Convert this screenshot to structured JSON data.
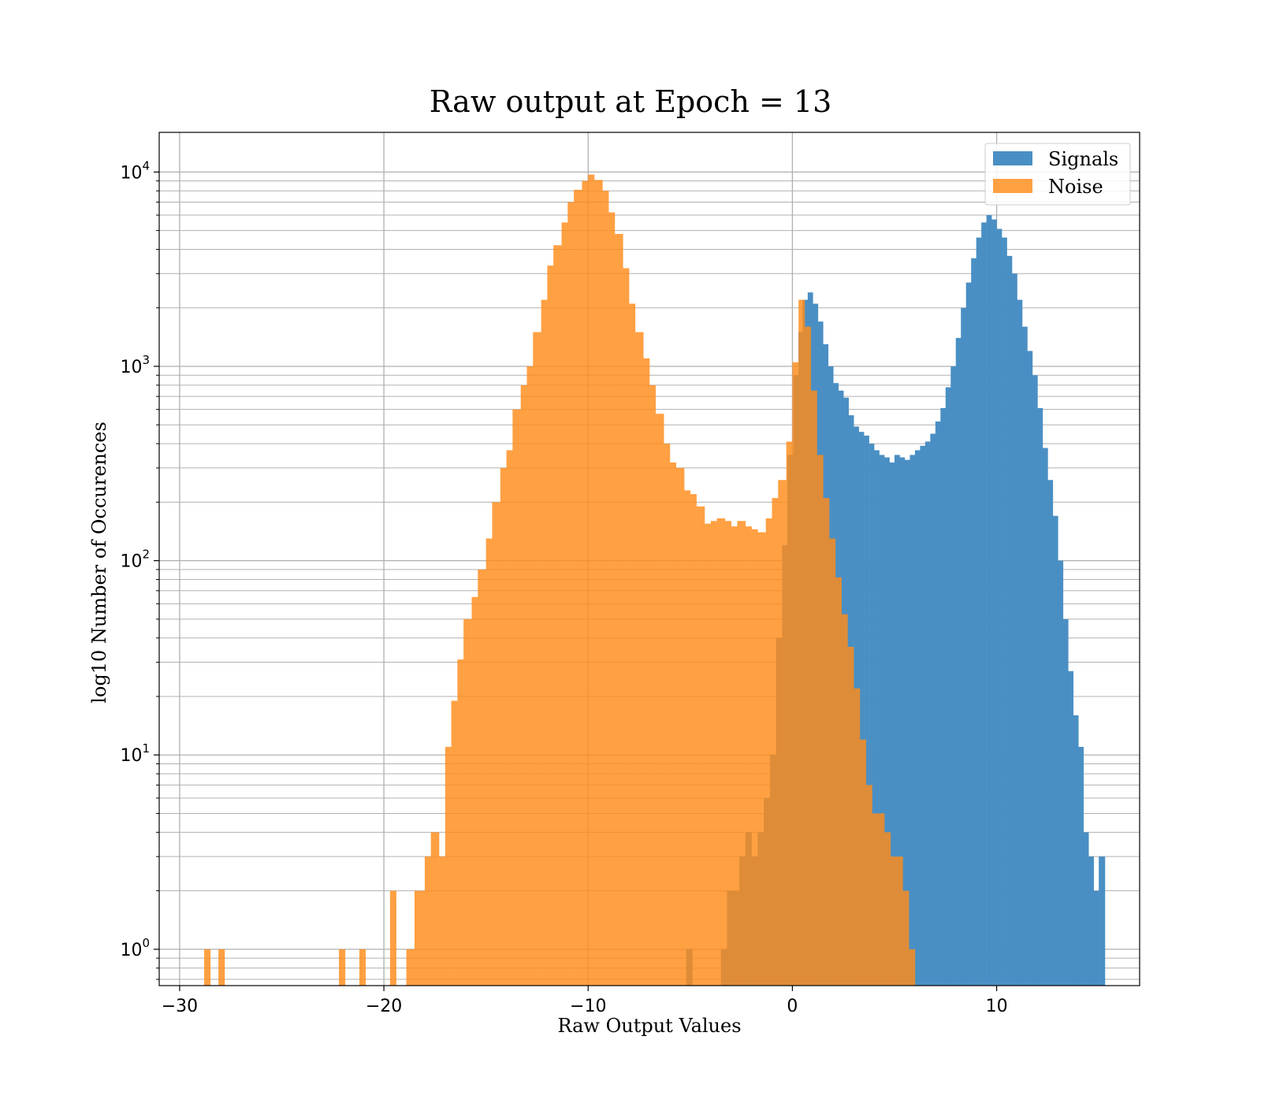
{
  "chart_data": {
    "type": "bar",
    "subtype": "histogram",
    "title": "Raw output at Epoch = 13",
    "xlabel": "Raw Output Values",
    "ylabel": "log10 Number of Occurences",
    "xlim": [
      -31,
      17
    ],
    "ylim": [
      0.65,
      16000
    ],
    "yscale": "log",
    "grid": true,
    "legend_position": "top-right",
    "x_ticks": [
      -30,
      -20,
      -10,
      0,
      10
    ],
    "y_ticks": [
      1,
      10,
      100,
      1000,
      10000
    ],
    "series": [
      {
        "name": "Signals",
        "color": "#4a8fc4",
        "opacity": 1,
        "bins": [
          [
            -5.2,
            1
          ],
          [
            -3.5,
            1
          ],
          [
            -3.2,
            2
          ],
          [
            -2.9,
            2
          ],
          [
            -2.6,
            3
          ],
          [
            -2.3,
            4
          ],
          [
            -2.0,
            3
          ],
          [
            -1.7,
            4
          ],
          [
            -1.4,
            6
          ],
          [
            -1.1,
            10
          ],
          [
            -0.8,
            40
          ],
          [
            -0.5,
            120
          ],
          [
            -0.25,
            350
          ],
          [
            0.05,
            900
          ],
          [
            0.3,
            1500
          ],
          [
            0.5,
            2200
          ],
          [
            0.75,
            2400
          ],
          [
            1.0,
            2100
          ],
          [
            1.25,
            1700
          ],
          [
            1.5,
            1300
          ],
          [
            1.75,
            1000
          ],
          [
            2.0,
            820
          ],
          [
            2.25,
            750
          ],
          [
            2.5,
            690
          ],
          [
            2.75,
            560
          ],
          [
            3.0,
            490
          ],
          [
            3.25,
            460
          ],
          [
            3.5,
            440
          ],
          [
            3.75,
            400
          ],
          [
            4.0,
            370
          ],
          [
            4.25,
            350
          ],
          [
            4.5,
            340
          ],
          [
            4.75,
            320
          ],
          [
            5.0,
            350
          ],
          [
            5.25,
            340
          ],
          [
            5.5,
            330
          ],
          [
            5.75,
            350
          ],
          [
            6.0,
            370
          ],
          [
            6.25,
            390
          ],
          [
            6.5,
            410
          ],
          [
            6.75,
            450
          ],
          [
            7.0,
            520
          ],
          [
            7.25,
            610
          ],
          [
            7.5,
            780
          ],
          [
            7.75,
            1000
          ],
          [
            8.0,
            1400
          ],
          [
            8.25,
            2000
          ],
          [
            8.5,
            2700
          ],
          [
            8.75,
            3600
          ],
          [
            9.0,
            4600
          ],
          [
            9.25,
            5500
          ],
          [
            9.5,
            6000
          ],
          [
            9.75,
            5700
          ],
          [
            10.0,
            5100
          ],
          [
            10.25,
            4600
          ],
          [
            10.5,
            3700
          ],
          [
            10.75,
            3000
          ],
          [
            11.0,
            2200
          ],
          [
            11.25,
            1600
          ],
          [
            11.5,
            1200
          ],
          [
            11.75,
            900
          ],
          [
            12.0,
            610
          ],
          [
            12.25,
            380
          ],
          [
            12.5,
            260
          ],
          [
            12.75,
            170
          ],
          [
            13.0,
            100
          ],
          [
            13.25,
            50
          ],
          [
            13.5,
            27
          ],
          [
            13.75,
            16
          ],
          [
            14.0,
            11
          ],
          [
            14.25,
            4
          ],
          [
            14.5,
            3
          ],
          [
            14.75,
            2
          ],
          [
            15.0,
            3
          ]
        ]
      },
      {
        "name": "Noise",
        "color": "#ff8c1a",
        "opacity": 0.82,
        "bins": [
          [
            -28.8,
            1
          ],
          [
            -28.1,
            1
          ],
          [
            -22.2,
            1
          ],
          [
            -21.2,
            1
          ],
          [
            -19.7,
            2
          ],
          [
            -18.9,
            1
          ],
          [
            -18.5,
            2
          ],
          [
            -18.0,
            3
          ],
          [
            -17.7,
            4
          ],
          [
            -17.3,
            3
          ],
          [
            -17.0,
            11
          ],
          [
            -16.7,
            19
          ],
          [
            -16.4,
            31
          ],
          [
            -16.1,
            50
          ],
          [
            -15.7,
            65
          ],
          [
            -15.4,
            90
          ],
          [
            -15.0,
            130
          ],
          [
            -14.7,
            200
          ],
          [
            -14.3,
            300
          ],
          [
            -14.0,
            370
          ],
          [
            -13.7,
            600
          ],
          [
            -13.3,
            800
          ],
          [
            -13.0,
            1000
          ],
          [
            -12.7,
            1500
          ],
          [
            -12.3,
            2200
          ],
          [
            -12.0,
            3300
          ],
          [
            -11.7,
            4200
          ],
          [
            -11.3,
            5500
          ],
          [
            -11.0,
            7000
          ],
          [
            -10.7,
            8100
          ],
          [
            -10.3,
            9000
          ],
          [
            -10.0,
            9700
          ],
          [
            -9.7,
            9100
          ],
          [
            -9.3,
            8000
          ],
          [
            -9.0,
            6200
          ],
          [
            -8.7,
            4800
          ],
          [
            -8.3,
            3200
          ],
          [
            -8.0,
            2100
          ],
          [
            -7.7,
            1500
          ],
          [
            -7.3,
            1100
          ],
          [
            -7.0,
            800
          ],
          [
            -6.7,
            570
          ],
          [
            -6.3,
            400
          ],
          [
            -6.0,
            320
          ],
          [
            -5.7,
            300
          ],
          [
            -5.3,
            230
          ],
          [
            -5.0,
            220
          ],
          [
            -4.7,
            190
          ],
          [
            -4.3,
            155
          ],
          [
            -4.0,
            160
          ],
          [
            -3.7,
            165
          ],
          [
            -3.3,
            160
          ],
          [
            -3.0,
            150
          ],
          [
            -2.7,
            160
          ],
          [
            -2.3,
            150
          ],
          [
            -2.0,
            145
          ],
          [
            -1.7,
            140
          ],
          [
            -1.3,
            165
          ],
          [
            -1.0,
            210
          ],
          [
            -0.7,
            260
          ],
          [
            -0.3,
            410
          ],
          [
            0.0,
            1050
          ],
          [
            0.3,
            2200
          ],
          [
            0.6,
            1600
          ],
          [
            0.9,
            750
          ],
          [
            1.2,
            350
          ],
          [
            1.5,
            210
          ],
          [
            1.8,
            130
          ],
          [
            2.1,
            82
          ],
          [
            2.4,
            53
          ],
          [
            2.7,
            36
          ],
          [
            3.0,
            22
          ],
          [
            3.3,
            12
          ],
          [
            3.6,
            7
          ],
          [
            3.9,
            5
          ],
          [
            4.2,
            5
          ],
          [
            4.5,
            4
          ],
          [
            4.8,
            3
          ],
          [
            5.1,
            3
          ],
          [
            5.4,
            2
          ],
          [
            5.7,
            1
          ]
        ]
      }
    ]
  }
}
